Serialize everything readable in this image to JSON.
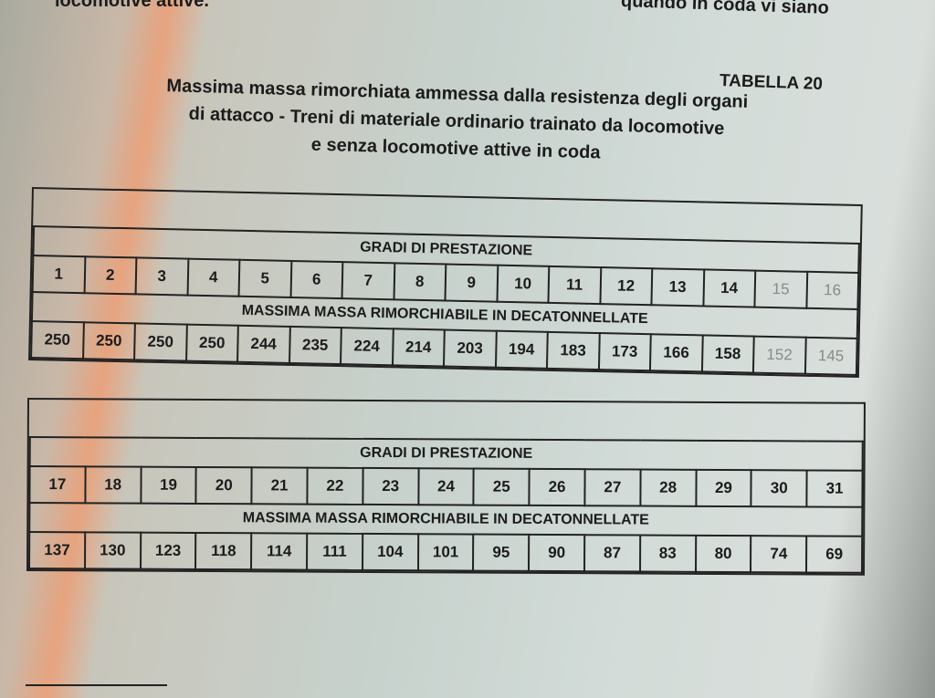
{
  "context": {
    "top_left_fragment": "locomotive attive.",
    "top_right_fragment": "quando in coda vi siano"
  },
  "table_number": "TABELLA 20",
  "title_lines": [
    "Massima massa rimorchiata ammessa dalla resistenza degli organi",
    "di attacco - Treni di materiale ordinario trainato da locomotive",
    "e senza locomotive attive in coda"
  ],
  "tables": [
    {
      "grades_header": "GRADI DI PRESTAZIONE",
      "grades": [
        "1",
        "2",
        "3",
        "4",
        "5",
        "6",
        "7",
        "8",
        "9",
        "10",
        "11",
        "12",
        "13",
        "14",
        "15",
        "16"
      ],
      "mass_header": "MASSIMA MASSA RIMORCHIABILE IN DECATONNELLATE",
      "masses": [
        "250",
        "250",
        "250",
        "250",
        "244",
        "235",
        "224",
        "214",
        "203",
        "194",
        "183",
        "173",
        "166",
        "158",
        "152",
        "145"
      ]
    },
    {
      "grades_header": "GRADI DI PRESTAZIONE",
      "grades": [
        "17",
        "18",
        "19",
        "20",
        "21",
        "22",
        "23",
        "24",
        "25",
        "26",
        "27",
        "28",
        "29",
        "30",
        "31"
      ],
      "mass_header": "MASSIMA MASSA RIMORCHIABILE IN DECATONNELLATE",
      "masses": [
        "137",
        "130",
        "123",
        "118",
        "114",
        "111",
        "104",
        "101",
        "95",
        "90",
        "87",
        "83",
        "80",
        "74",
        "69"
      ]
    }
  ]
}
